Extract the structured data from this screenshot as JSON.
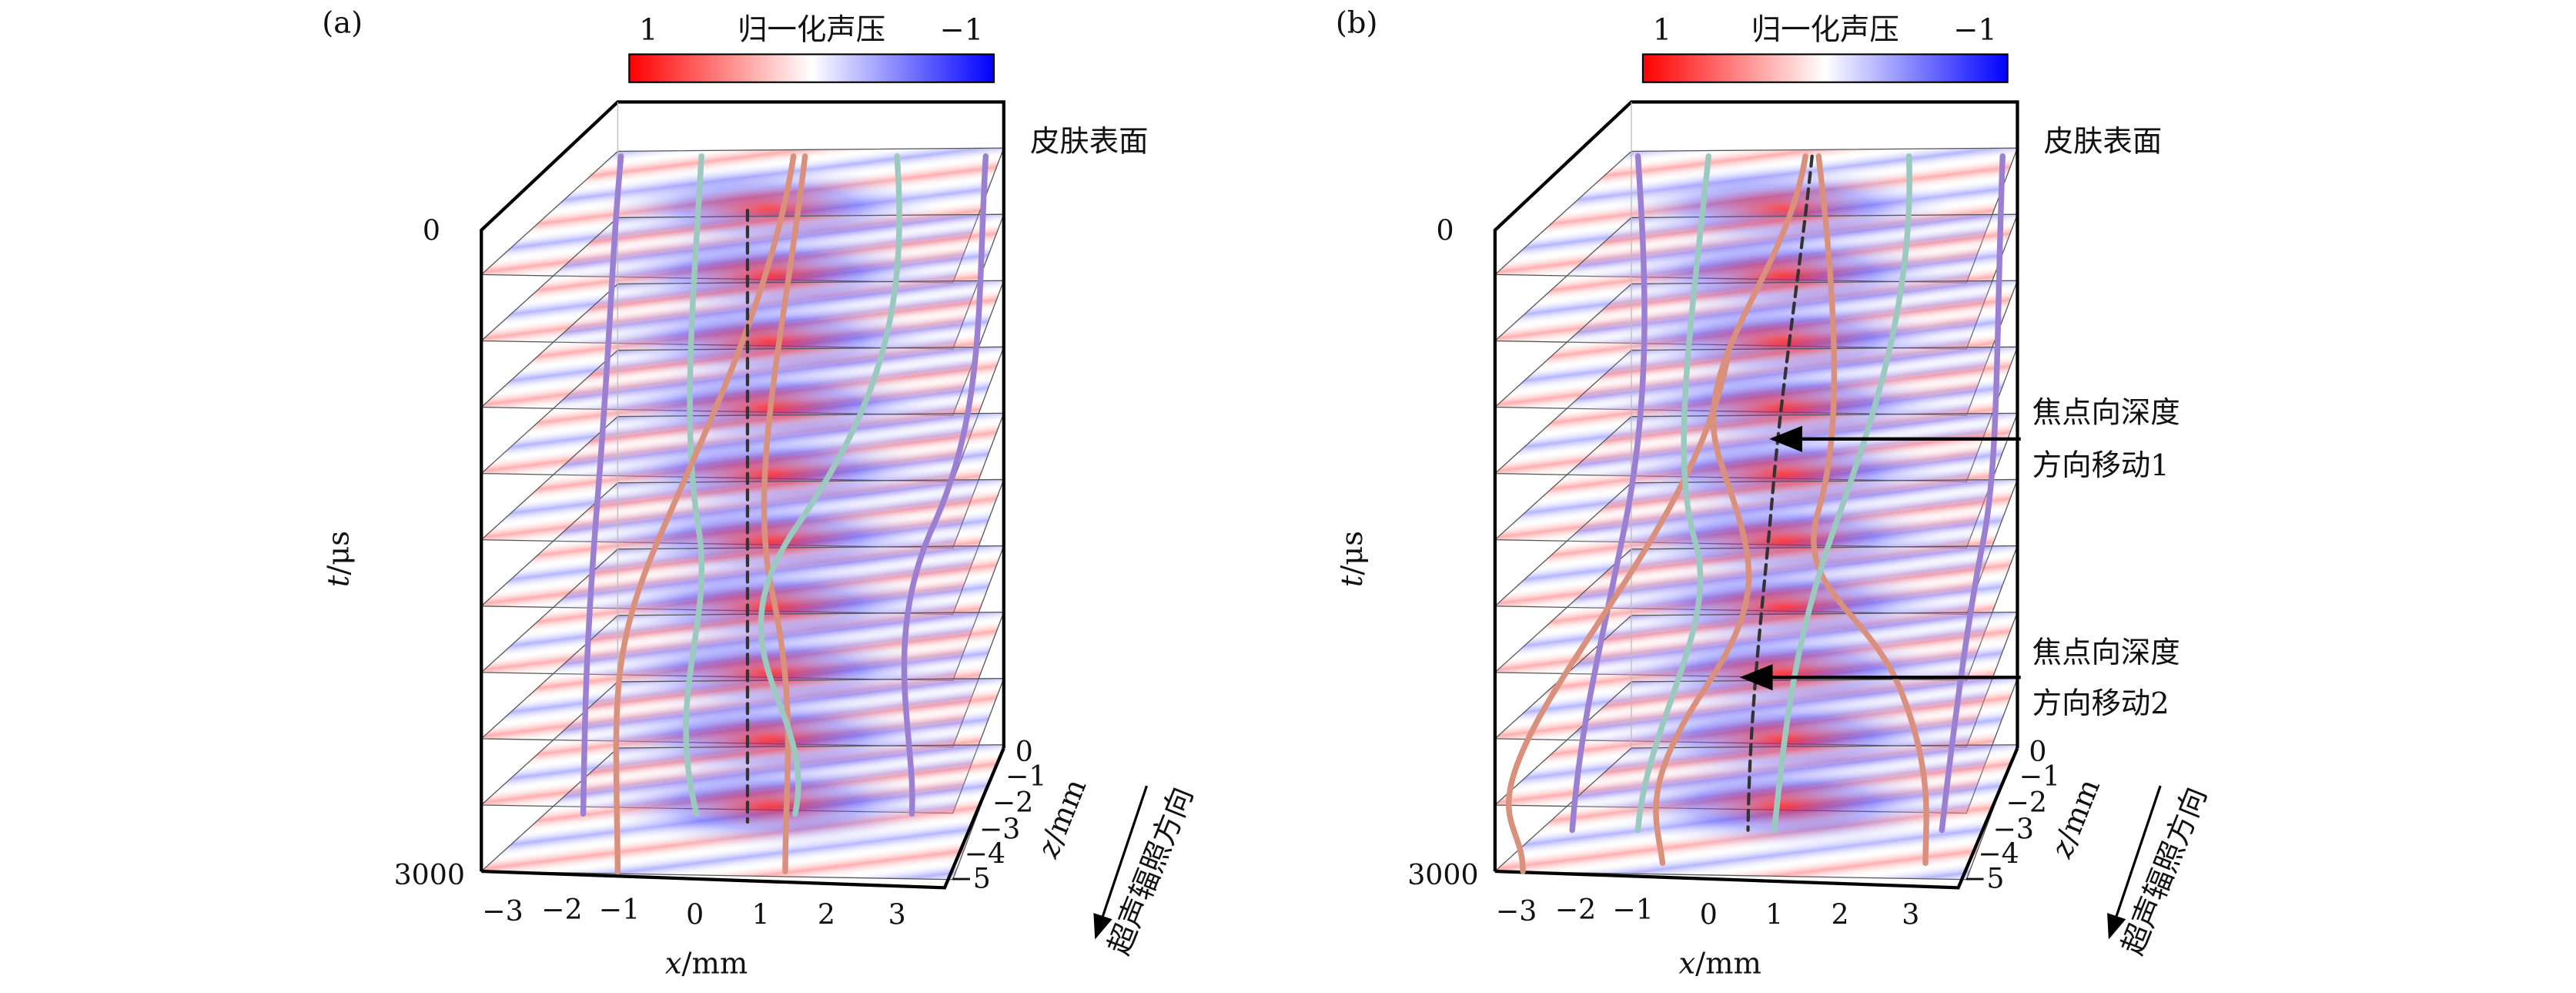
{
  "colors": {
    "positive": "#ff0000",
    "zero": "#ffffff",
    "negative": "#0000ff",
    "curve_purple": "#9b7fd0",
    "curve_teal": "#9cc9bf",
    "curve_salmon": "#d9917e",
    "focus_line": "#333333"
  },
  "panels": [
    {
      "label": "(a)",
      "colorbar": {
        "left_value": "1",
        "title": "归一化声压",
        "right_value": "−1"
      },
      "t_axis": {
        "var": "t",
        "unit": "/μs",
        "ticks": [
          "0",
          "3000"
        ]
      },
      "x_axis": {
        "var": "x",
        "unit": "/mm",
        "ticks": [
          "−3",
          "−2",
          "−1",
          "0",
          "1",
          "2",
          "3"
        ]
      },
      "z_axis": {
        "var": "z",
        "unit": "/mm",
        "ticks": [
          "0",
          "−1",
          "−2",
          "−3",
          "−4",
          "−5"
        ]
      },
      "surface_label": "皮肤表面",
      "direction_label": "超声辐照方向"
    },
    {
      "label": "(b)",
      "colorbar": {
        "left_value": "1",
        "title": "归一化声压",
        "right_value": "−1"
      },
      "t_axis": {
        "var": "t",
        "unit": "/μs",
        "ticks": [
          "0",
          "3000"
        ]
      },
      "x_axis": {
        "var": "x",
        "unit": "/mm",
        "ticks": [
          "−3",
          "−2",
          "−1",
          "0",
          "1",
          "2",
          "3"
        ]
      },
      "z_axis": {
        "var": "z",
        "unit": "/mm",
        "ticks": [
          "0",
          "−1",
          "−2",
          "−3",
          "−4",
          "−5"
        ]
      },
      "surface_label": "皮肤表面",
      "direction_label": "超声辐照方向",
      "annotations": [
        {
          "line1": "焦点向深度",
          "line2": "方向移动1"
        },
        {
          "line1": "焦点向深度",
          "line2": "方向移动2"
        }
      ]
    }
  ]
}
